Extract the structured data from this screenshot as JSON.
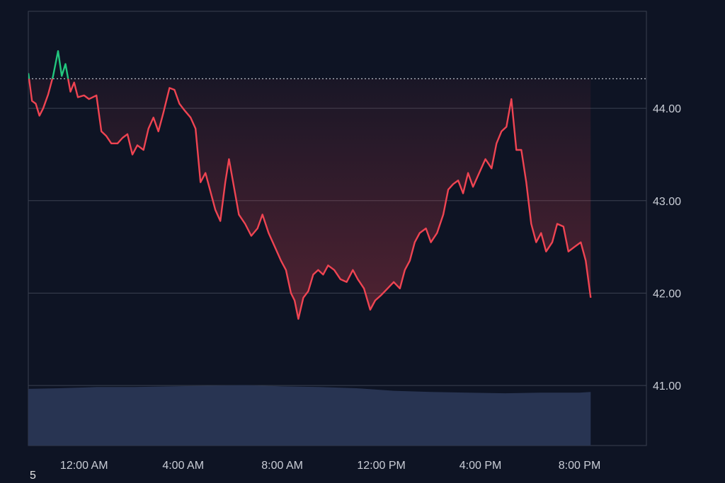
{
  "chart_data": {
    "type": "line",
    "grid": true,
    "y_axis_position": "right",
    "y_ticks": [
      44.0,
      43.0,
      42.0,
      41.0
    ],
    "y_tick_labels": [
      "44.00",
      "43.00",
      "42.00",
      "41.00"
    ],
    "ylim": [
      40.35,
      45.05
    ],
    "x_tick_labels": [
      "12:00 AM",
      "4:00 AM",
      "8:00 AM",
      "12:00 PM",
      "4:00 PM",
      "8:00 PM"
    ],
    "x_tick_hours": [
      24,
      28,
      32,
      36,
      40,
      44
    ],
    "xlim_hours": [
      21.75,
      46.7
    ],
    "reference_price": 44.32,
    "series": [
      {
        "values": [
          [
            21.75,
            44.38
          ],
          [
            21.9,
            44.08
          ],
          [
            22.05,
            44.05
          ],
          [
            22.2,
            43.92
          ],
          [
            22.35,
            44.0
          ],
          [
            22.55,
            44.15
          ],
          [
            22.75,
            44.35
          ],
          [
            22.95,
            44.62
          ],
          [
            23.1,
            44.35
          ],
          [
            23.25,
            44.48
          ],
          [
            23.45,
            44.18
          ],
          [
            23.6,
            44.28
          ],
          [
            23.75,
            44.12
          ],
          [
            24.0,
            44.14
          ],
          [
            24.2,
            44.1
          ],
          [
            24.5,
            44.14
          ],
          [
            24.7,
            43.75
          ],
          [
            24.9,
            43.7
          ],
          [
            25.1,
            43.62
          ],
          [
            25.35,
            43.62
          ],
          [
            25.55,
            43.68
          ],
          [
            25.75,
            43.72
          ],
          [
            25.95,
            43.5
          ],
          [
            26.15,
            43.6
          ],
          [
            26.4,
            43.55
          ],
          [
            26.6,
            43.78
          ],
          [
            26.8,
            43.9
          ],
          [
            27.0,
            43.75
          ],
          [
            27.2,
            43.95
          ],
          [
            27.45,
            44.22
          ],
          [
            27.65,
            44.2
          ],
          [
            27.85,
            44.05
          ],
          [
            28.05,
            43.98
          ],
          [
            28.3,
            43.9
          ],
          [
            28.5,
            43.78
          ],
          [
            28.7,
            43.2
          ],
          [
            28.9,
            43.3
          ],
          [
            29.1,
            43.1
          ],
          [
            29.3,
            42.9
          ],
          [
            29.5,
            42.78
          ],
          [
            29.7,
            43.2
          ],
          [
            29.85,
            43.45
          ],
          [
            30.05,
            43.15
          ],
          [
            30.25,
            42.85
          ],
          [
            30.5,
            42.75
          ],
          [
            30.75,
            42.62
          ],
          [
            31.0,
            42.7
          ],
          [
            31.2,
            42.85
          ],
          [
            31.45,
            42.65
          ],
          [
            31.7,
            42.5
          ],
          [
            31.95,
            42.35
          ],
          [
            32.15,
            42.25
          ],
          [
            32.35,
            42.0
          ],
          [
            32.5,
            41.92
          ],
          [
            32.65,
            41.72
          ],
          [
            32.85,
            41.95
          ],
          [
            33.05,
            42.02
          ],
          [
            33.25,
            42.2
          ],
          [
            33.45,
            42.25
          ],
          [
            33.65,
            42.2
          ],
          [
            33.85,
            42.3
          ],
          [
            34.1,
            42.25
          ],
          [
            34.35,
            42.15
          ],
          [
            34.6,
            42.12
          ],
          [
            34.85,
            42.25
          ],
          [
            35.05,
            42.15
          ],
          [
            35.3,
            42.05
          ],
          [
            35.55,
            41.82
          ],
          [
            35.75,
            41.92
          ],
          [
            36.0,
            41.98
          ],
          [
            36.25,
            42.05
          ],
          [
            36.5,
            42.12
          ],
          [
            36.75,
            42.05
          ],
          [
            36.95,
            42.25
          ],
          [
            37.15,
            42.35
          ],
          [
            37.35,
            42.55
          ],
          [
            37.55,
            42.65
          ],
          [
            37.8,
            42.7
          ],
          [
            38.0,
            42.55
          ],
          [
            38.25,
            42.65
          ],
          [
            38.5,
            42.85
          ],
          [
            38.7,
            43.12
          ],
          [
            38.9,
            43.18
          ],
          [
            39.1,
            43.22
          ],
          [
            39.3,
            43.08
          ],
          [
            39.5,
            43.3
          ],
          [
            39.7,
            43.15
          ],
          [
            39.95,
            43.3
          ],
          [
            40.2,
            43.45
          ],
          [
            40.45,
            43.35
          ],
          [
            40.65,
            43.62
          ],
          [
            40.85,
            43.75
          ],
          [
            41.05,
            43.8
          ],
          [
            41.25,
            44.1
          ],
          [
            41.45,
            43.55
          ],
          [
            41.65,
            43.55
          ],
          [
            41.85,
            43.2
          ],
          [
            42.05,
            42.75
          ],
          [
            42.25,
            42.55
          ],
          [
            42.45,
            42.65
          ],
          [
            42.65,
            42.45
          ],
          [
            42.9,
            42.55
          ],
          [
            43.1,
            42.75
          ],
          [
            43.35,
            42.72
          ],
          [
            43.55,
            42.45
          ],
          [
            43.8,
            42.5
          ],
          [
            44.05,
            42.55
          ],
          [
            44.25,
            42.35
          ],
          [
            44.45,
            41.95
          ]
        ]
      }
    ],
    "volume": {
      "shown": true,
      "relative_levels": [
        [
          21.75,
          0.91
        ],
        [
          23.0,
          0.92
        ],
        [
          24.5,
          0.94
        ],
        [
          26.0,
          0.94
        ],
        [
          27.5,
          0.95
        ],
        [
          29.0,
          0.96
        ],
        [
          30.5,
          0.97
        ],
        [
          32.0,
          0.95
        ],
        [
          33.5,
          0.94
        ],
        [
          35.0,
          0.92
        ],
        [
          36.5,
          0.88
        ],
        [
          38.0,
          0.86
        ],
        [
          39.5,
          0.85
        ],
        [
          41.0,
          0.84
        ],
        [
          42.5,
          0.85
        ],
        [
          44.0,
          0.85
        ],
        [
          44.45,
          0.86
        ]
      ]
    },
    "colors": {
      "background": "#0e1424",
      "up": "#22c77e",
      "down": "#ef4452",
      "grid": "#3a4150",
      "reference_line": "#b7bcc5",
      "volume": "#283452",
      "tick_text": "#c9cdd6"
    }
  },
  "footnote": "5"
}
